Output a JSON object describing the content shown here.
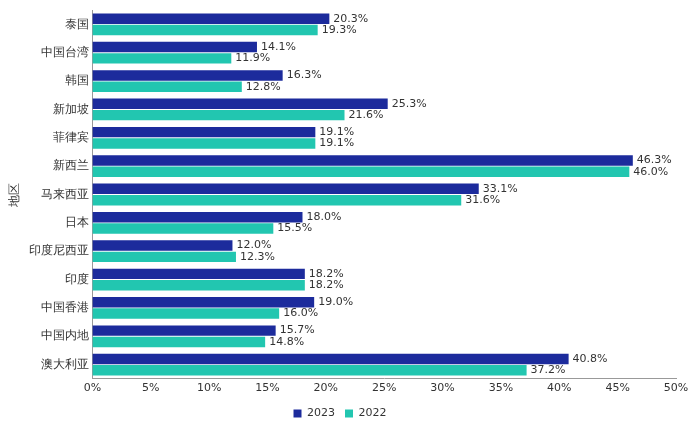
{
  "chart_data": {
    "type": "bar",
    "orientation": "horizontal",
    "y_label": "地区",
    "categories": [
      "泰国",
      "中国台湾",
      "韩国",
      "新加坡",
      "菲律宾",
      "新西兰",
      "马来西亚",
      "日本",
      "印度尼西亚",
      "印度",
      "中国香港",
      "中国内地",
      "澳大利亚"
    ],
    "series": [
      {
        "name": "2023",
        "color": "#1c2b9c",
        "values": [
          20.3,
          14.1,
          16.3,
          25.3,
          19.1,
          46.3,
          33.1,
          18.0,
          12.0,
          18.2,
          19.0,
          15.7,
          40.8
        ],
        "value_labels": [
          "20.3%",
          "14.1%",
          "16.3%",
          "25.3%",
          "19.1%",
          "46.3%",
          "33.1%",
          "18.0%",
          "12.0%",
          "18.2%",
          "19.0%",
          "15.7%",
          "40.8%"
        ]
      },
      {
        "name": "2022",
        "color": "#22c6b0",
        "values": [
          19.3,
          11.9,
          12.8,
          21.6,
          19.1,
          46.0,
          31.6,
          15.5,
          12.3,
          18.2,
          16.0,
          14.8,
          37.2
        ],
        "value_labels": [
          "19.3%",
          "11.9%",
          "12.8%",
          "21.6%",
          "19.1%",
          "46.0%",
          "31.6%",
          "15.5%",
          "12.3%",
          "18.2%",
          "16.0%",
          "14.8%",
          "37.2%"
        ]
      }
    ],
    "xlim": [
      0,
      50
    ],
    "xticks": [
      {
        "value": 0,
        "label": "0%"
      },
      {
        "value": 5,
        "label": "5%"
      },
      {
        "value": 10,
        "label": "10%"
      },
      {
        "value": 15,
        "label": "15%"
      },
      {
        "value": 20,
        "label": "20%"
      },
      {
        "value": 25,
        "label": "25%"
      },
      {
        "value": 30,
        "label": "30%"
      },
      {
        "value": 35,
        "label": "35%"
      },
      {
        "value": 40,
        "label": "40%"
      },
      {
        "value": 45,
        "label": "45%"
      },
      {
        "value": 50,
        "label": "50%"
      }
    ],
    "grid": false,
    "legend": "bottom",
    "data_labels": true
  }
}
